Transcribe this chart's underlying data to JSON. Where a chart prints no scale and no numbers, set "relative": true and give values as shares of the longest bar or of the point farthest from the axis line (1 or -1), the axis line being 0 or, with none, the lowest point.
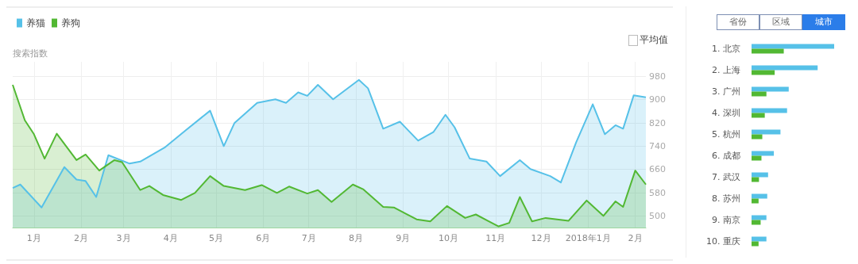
{
  "chart_data": [
    {
      "type": "area",
      "ylabel": "搜索指数",
      "legend": "top left",
      "grid": true,
      "annotations": [
        "平均值"
      ],
      "xlim": [
        "2016-12-18",
        "2018-02-08"
      ],
      "xticks": [
        {
          "value": "2017-01-01",
          "label": "1月"
        },
        {
          "value": "2017-02-01",
          "label": "2月"
        },
        {
          "value": "2017-03-01",
          "label": "3月"
        },
        {
          "value": "2017-04-01",
          "label": "4月"
        },
        {
          "value": "2017-05-01",
          "label": "5月"
        },
        {
          "value": "2017-06-01",
          "label": "6月"
        },
        {
          "value": "2017-07-01",
          "label": "7月"
        },
        {
          "value": "2017-08-01",
          "label": "8月"
        },
        {
          "value": "2017-09-01",
          "label": "9月"
        },
        {
          "value": "2017-10-01",
          "label": "10月"
        },
        {
          "value": "2017-11-01",
          "label": "11月"
        },
        {
          "value": "2017-12-01",
          "label": "12月"
        },
        {
          "value": "2018-01-01",
          "label": "2018年1月"
        },
        {
          "value": "2018-02-01",
          "label": "2月"
        }
      ],
      "ylim": [
        460,
        1030
      ],
      "yticks": [
        500,
        580,
        660,
        740,
        820,
        900,
        980
      ],
      "series": [
        {
          "name": "养猫",
          "color": "#56c1e8",
          "x": [
            "2016-12-18",
            "2016-12-23",
            "2017-01-06",
            "2017-01-21",
            "2017-01-29",
            "2017-02-04",
            "2017-02-11",
            "2017-02-19",
            "2017-03-05",
            "2017-03-12",
            "2017-03-28",
            "2017-04-11",
            "2017-04-27",
            "2017-05-06",
            "2017-05-13",
            "2017-05-28",
            "2017-06-09",
            "2017-06-16",
            "2017-06-24",
            "2017-06-30",
            "2017-07-07",
            "2017-07-17",
            "2017-08-03",
            "2017-08-09",
            "2017-08-19",
            "2017-08-30",
            "2017-09-11",
            "2017-09-21",
            "2017-09-29",
            "2017-10-05",
            "2017-10-15",
            "2017-10-26",
            "2017-11-04",
            "2017-11-17",
            "2017-11-24",
            "2017-12-07",
            "2017-12-14",
            "2017-12-24",
            "2018-01-04",
            "2018-01-12",
            "2018-01-19",
            "2018-01-24",
            "2018-01-31",
            "2018-02-08"
          ],
          "values": [
            596,
            608,
            529,
            668,
            625,
            620,
            565,
            709,
            680,
            687,
            735,
            795,
            862,
            740,
            819,
            889,
            901,
            889,
            925,
            913,
            951,
            901,
            968,
            939,
            800,
            824,
            759,
            788,
            848,
            805,
            697,
            687,
            637,
            692,
            661,
            637,
            615,
            752,
            884,
            781,
            812,
            800,
            915,
            908
          ]
        },
        {
          "name": "养狗",
          "color": "#52b833",
          "x": [
            "2016-12-18",
            "2016-12-26",
            "2017-01-01",
            "2017-01-08",
            "2017-01-16",
            "2017-01-29",
            "2017-02-04",
            "2017-02-13",
            "2017-02-23",
            "2017-02-28",
            "2017-03-12",
            "2017-03-18",
            "2017-03-27",
            "2017-04-08",
            "2017-04-17",
            "2017-04-27",
            "2017-05-06",
            "2017-05-20",
            "2017-05-31",
            "2017-06-10",
            "2017-06-18",
            "2017-06-30",
            "2017-07-07",
            "2017-07-16",
            "2017-07-30",
            "2017-08-06",
            "2017-08-19",
            "2017-08-26",
            "2017-09-10",
            "2017-09-19",
            "2017-09-30",
            "2017-10-12",
            "2017-10-19",
            "2017-10-27",
            "2017-11-03",
            "2017-11-10",
            "2017-11-17",
            "2017-11-25",
            "2017-12-04",
            "2017-12-19",
            "2017-12-31",
            "2018-01-11",
            "2018-01-19",
            "2018-01-24",
            "2018-02-01",
            "2018-02-08"
          ],
          "values": [
            951,
            829,
            781,
            697,
            783,
            692,
            711,
            656,
            692,
            685,
            589,
            603,
            572,
            555,
            579,
            637,
            603,
            589,
            606,
            579,
            601,
            577,
            589,
            548,
            608,
            591,
            531,
            529,
            488,
            481,
            534,
            493,
            505,
            483,
            464,
            476,
            565,
            481,
            493,
            483,
            553,
            500,
            550,
            531,
            656,
            608
          ]
        }
      ]
    },
    {
      "type": "bar",
      "orientation": "horizontal",
      "relative": true,
      "annotations": [
        "省份",
        "区域",
        "城市"
      ],
      "categories": [
        "1. 北京",
        "2. 上海",
        "3. 广州",
        "4. 深圳",
        "5. 杭州",
        "6. 成都",
        "7. 武汉",
        "8. 苏州",
        "9. 南京",
        "10. 重庆"
      ],
      "series": [
        {
          "color": "#56c1e8",
          "values": [
            1,
            0.8,
            0.45,
            0.43,
            0.35,
            0.27,
            0.2,
            0.19,
            0.18,
            0.18
          ]
        },
        {
          "color": "#52b833",
          "values": [
            0.39,
            0.28,
            0.18,
            0.16,
            0.13,
            0.12,
            0.09,
            0.085,
            0.11,
            0.085
          ]
        }
      ]
    }
  ]
}
